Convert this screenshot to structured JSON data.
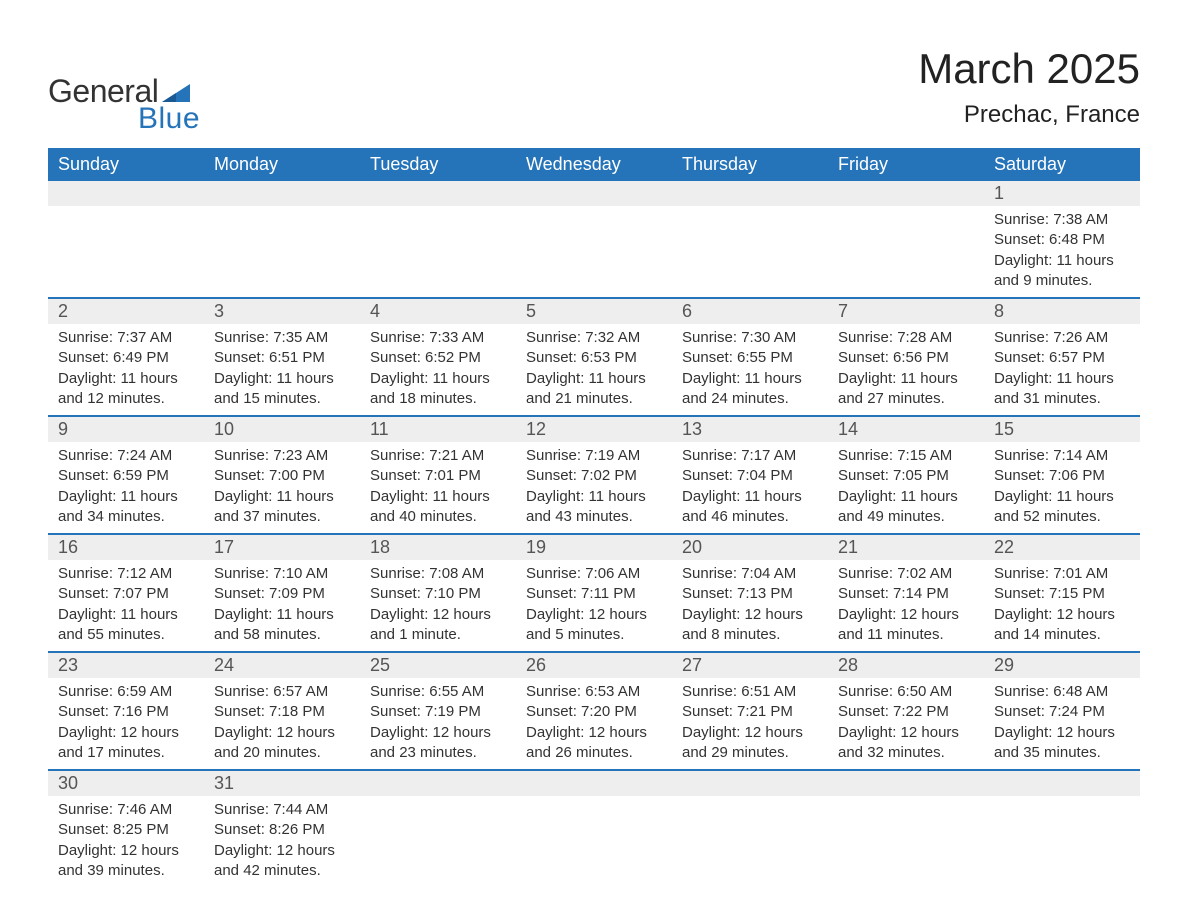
{
  "brand": {
    "text1": "General",
    "text2": "Blue",
    "tri_color": "#2573b8"
  },
  "title": "March 2025",
  "location": "Prechac, France",
  "colors": {
    "header_bg": "#2573b8",
    "header_text": "#ffffff",
    "daynum_bg": "#eeeeee",
    "row_divider": "#2573b8",
    "text": "#333333",
    "background": "#ffffff"
  },
  "typography": {
    "title_fontsize": 42,
    "location_fontsize": 24,
    "dayheader_fontsize": 18,
    "daynum_fontsize": 18,
    "body_fontsize": 15,
    "font_family": "Arial"
  },
  "day_headers": [
    "Sunday",
    "Monday",
    "Tuesday",
    "Wednesday",
    "Thursday",
    "Friday",
    "Saturday"
  ],
  "weeks": [
    [
      null,
      null,
      null,
      null,
      null,
      null,
      {
        "n": "1",
        "sunrise": "Sunrise: 7:38 AM",
        "sunset": "Sunset: 6:48 PM",
        "daylight": "Daylight: 11 hours and 9 minutes."
      }
    ],
    [
      {
        "n": "2",
        "sunrise": "Sunrise: 7:37 AM",
        "sunset": "Sunset: 6:49 PM",
        "daylight": "Daylight: 11 hours and 12 minutes."
      },
      {
        "n": "3",
        "sunrise": "Sunrise: 7:35 AM",
        "sunset": "Sunset: 6:51 PM",
        "daylight": "Daylight: 11 hours and 15 minutes."
      },
      {
        "n": "4",
        "sunrise": "Sunrise: 7:33 AM",
        "sunset": "Sunset: 6:52 PM",
        "daylight": "Daylight: 11 hours and 18 minutes."
      },
      {
        "n": "5",
        "sunrise": "Sunrise: 7:32 AM",
        "sunset": "Sunset: 6:53 PM",
        "daylight": "Daylight: 11 hours and 21 minutes."
      },
      {
        "n": "6",
        "sunrise": "Sunrise: 7:30 AM",
        "sunset": "Sunset: 6:55 PM",
        "daylight": "Daylight: 11 hours and 24 minutes."
      },
      {
        "n": "7",
        "sunrise": "Sunrise: 7:28 AM",
        "sunset": "Sunset: 6:56 PM",
        "daylight": "Daylight: 11 hours and 27 minutes."
      },
      {
        "n": "8",
        "sunrise": "Sunrise: 7:26 AM",
        "sunset": "Sunset: 6:57 PM",
        "daylight": "Daylight: 11 hours and 31 minutes."
      }
    ],
    [
      {
        "n": "9",
        "sunrise": "Sunrise: 7:24 AM",
        "sunset": "Sunset: 6:59 PM",
        "daylight": "Daylight: 11 hours and 34 minutes."
      },
      {
        "n": "10",
        "sunrise": "Sunrise: 7:23 AM",
        "sunset": "Sunset: 7:00 PM",
        "daylight": "Daylight: 11 hours and 37 minutes."
      },
      {
        "n": "11",
        "sunrise": "Sunrise: 7:21 AM",
        "sunset": "Sunset: 7:01 PM",
        "daylight": "Daylight: 11 hours and 40 minutes."
      },
      {
        "n": "12",
        "sunrise": "Sunrise: 7:19 AM",
        "sunset": "Sunset: 7:02 PM",
        "daylight": "Daylight: 11 hours and 43 minutes."
      },
      {
        "n": "13",
        "sunrise": "Sunrise: 7:17 AM",
        "sunset": "Sunset: 7:04 PM",
        "daylight": "Daylight: 11 hours and 46 minutes."
      },
      {
        "n": "14",
        "sunrise": "Sunrise: 7:15 AM",
        "sunset": "Sunset: 7:05 PM",
        "daylight": "Daylight: 11 hours and 49 minutes."
      },
      {
        "n": "15",
        "sunrise": "Sunrise: 7:14 AM",
        "sunset": "Sunset: 7:06 PM",
        "daylight": "Daylight: 11 hours and 52 minutes."
      }
    ],
    [
      {
        "n": "16",
        "sunrise": "Sunrise: 7:12 AM",
        "sunset": "Sunset: 7:07 PM",
        "daylight": "Daylight: 11 hours and 55 minutes."
      },
      {
        "n": "17",
        "sunrise": "Sunrise: 7:10 AM",
        "sunset": "Sunset: 7:09 PM",
        "daylight": "Daylight: 11 hours and 58 minutes."
      },
      {
        "n": "18",
        "sunrise": "Sunrise: 7:08 AM",
        "sunset": "Sunset: 7:10 PM",
        "daylight": "Daylight: 12 hours and 1 minute."
      },
      {
        "n": "19",
        "sunrise": "Sunrise: 7:06 AM",
        "sunset": "Sunset: 7:11 PM",
        "daylight": "Daylight: 12 hours and 5 minutes."
      },
      {
        "n": "20",
        "sunrise": "Sunrise: 7:04 AM",
        "sunset": "Sunset: 7:13 PM",
        "daylight": "Daylight: 12 hours and 8 minutes."
      },
      {
        "n": "21",
        "sunrise": "Sunrise: 7:02 AM",
        "sunset": "Sunset: 7:14 PM",
        "daylight": "Daylight: 12 hours and 11 minutes."
      },
      {
        "n": "22",
        "sunrise": "Sunrise: 7:01 AM",
        "sunset": "Sunset: 7:15 PM",
        "daylight": "Daylight: 12 hours and 14 minutes."
      }
    ],
    [
      {
        "n": "23",
        "sunrise": "Sunrise: 6:59 AM",
        "sunset": "Sunset: 7:16 PM",
        "daylight": "Daylight: 12 hours and 17 minutes."
      },
      {
        "n": "24",
        "sunrise": "Sunrise: 6:57 AM",
        "sunset": "Sunset: 7:18 PM",
        "daylight": "Daylight: 12 hours and 20 minutes."
      },
      {
        "n": "25",
        "sunrise": "Sunrise: 6:55 AM",
        "sunset": "Sunset: 7:19 PM",
        "daylight": "Daylight: 12 hours and 23 minutes."
      },
      {
        "n": "26",
        "sunrise": "Sunrise: 6:53 AM",
        "sunset": "Sunset: 7:20 PM",
        "daylight": "Daylight: 12 hours and 26 minutes."
      },
      {
        "n": "27",
        "sunrise": "Sunrise: 6:51 AM",
        "sunset": "Sunset: 7:21 PM",
        "daylight": "Daylight: 12 hours and 29 minutes."
      },
      {
        "n": "28",
        "sunrise": "Sunrise: 6:50 AM",
        "sunset": "Sunset: 7:22 PM",
        "daylight": "Daylight: 12 hours and 32 minutes."
      },
      {
        "n": "29",
        "sunrise": "Sunrise: 6:48 AM",
        "sunset": "Sunset: 7:24 PM",
        "daylight": "Daylight: 12 hours and 35 minutes."
      }
    ],
    [
      {
        "n": "30",
        "sunrise": "Sunrise: 7:46 AM",
        "sunset": "Sunset: 8:25 PM",
        "daylight": "Daylight: 12 hours and 39 minutes."
      },
      {
        "n": "31",
        "sunrise": "Sunrise: 7:44 AM",
        "sunset": "Sunset: 8:26 PM",
        "daylight": "Daylight: 12 hours and 42 minutes."
      },
      null,
      null,
      null,
      null,
      null
    ]
  ]
}
